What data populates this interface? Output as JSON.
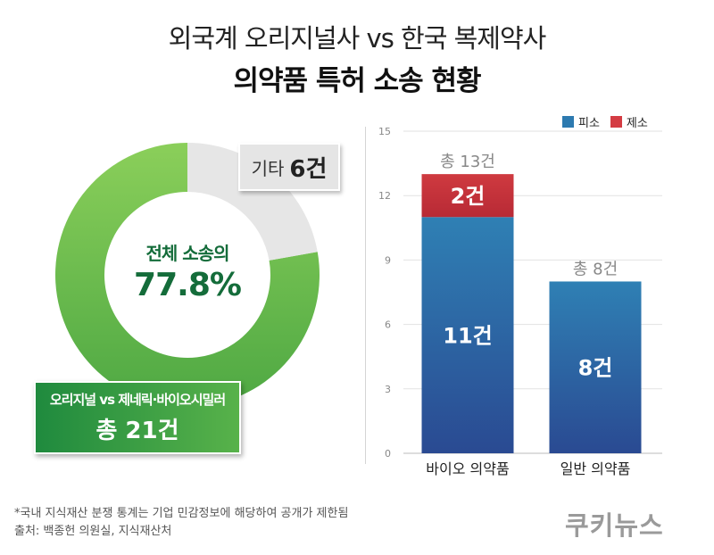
{
  "header": {
    "title_line1": "외국계 오리지널사 vs 한국 복제약사",
    "title_line2": "의약품 특허 소송 현황"
  },
  "donut": {
    "center_sub": "전체 소송의",
    "center_pct": "77.8%",
    "other_label": "기타",
    "other_value": "6건",
    "main_label": "오리지널 vs 제네릭·바이오시밀러",
    "main_value": "총 21건"
  },
  "chart_data": [
    {
      "type": "pie",
      "slices": [
        {
          "label": "오리지널 vs 제네릭·바이오시밀러",
          "value": 21,
          "color": "#5cb84a"
        },
        {
          "label": "기타",
          "value": 6,
          "color": "#e6e6e6"
        }
      ]
    },
    {
      "type": "bar",
      "stacked": true,
      "categories": [
        "바이오 의약품",
        "일반 의약품"
      ],
      "series": [
        {
          "name": "피소",
          "values": [
            11,
            8
          ],
          "color": "#2d7ab0"
        },
        {
          "name": "제소",
          "values": [
            2,
            0
          ],
          "color": "#d43c43"
        }
      ],
      "bar_labels": [
        [
          "11건",
          "8건"
        ],
        [
          "2건",
          ""
        ]
      ],
      "totals": [
        "총 13건",
        "총 8건"
      ],
      "ylim": [
        0,
        15
      ],
      "yticks": [
        "0",
        "3",
        "6",
        "9",
        "12",
        "15"
      ],
      "grid": true,
      "legend": "top-right"
    }
  ],
  "footer": {
    "note": "*국내 지식재산 분쟁 통계는 기업 민감정보에 해당하여 공개가 제한됨",
    "source": "출처: 백종헌 의원실, 지식재산처",
    "brand": "쿠키뉴스"
  }
}
